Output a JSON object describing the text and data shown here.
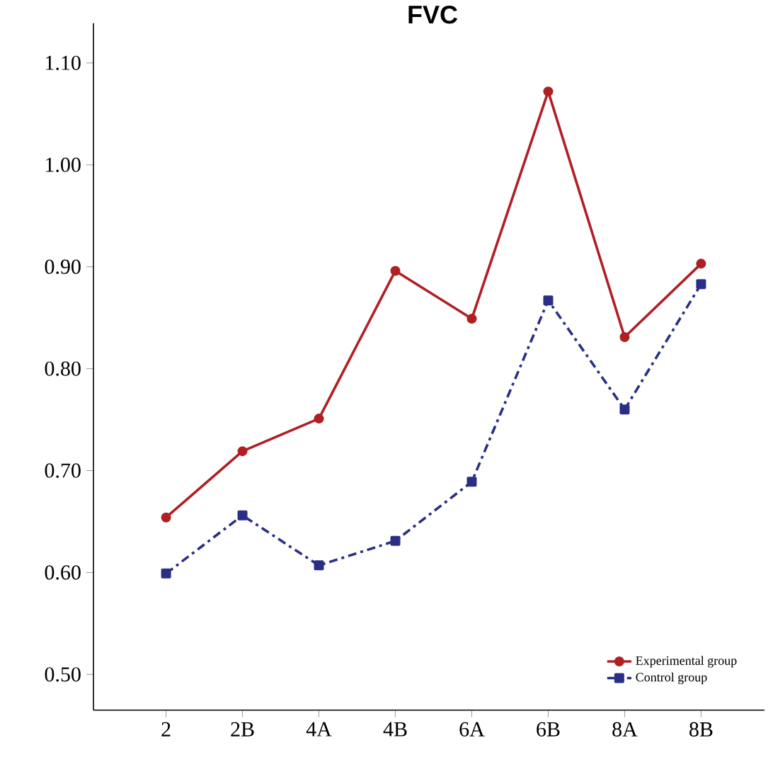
{
  "chart_data": {
    "type": "line",
    "title": "FVC",
    "categories": [
      "2",
      "2B",
      "4A",
      "4B",
      "6A",
      "6B",
      "8A",
      "8B"
    ],
    "series": [
      {
        "name": "Experimental group",
        "color": "#b01f24",
        "marker": "circle",
        "line_style": "solid",
        "values": [
          0.654,
          0.719,
          0.751,
          0.896,
          0.849,
          1.072,
          0.831,
          0.903
        ]
      },
      {
        "name": "Control group",
        "color": "#2a2f86",
        "marker": "square",
        "line_style": "dashed",
        "values": [
          0.599,
          0.656,
          0.607,
          0.631,
          0.689,
          0.867,
          0.76,
          0.883
        ]
      }
    ],
    "ylim": [
      0.465,
      1.139
    ],
    "yticks": [
      {
        "value": 0.5,
        "label": "0.50"
      },
      {
        "value": 0.6,
        "label": "0.60"
      },
      {
        "value": 0.7,
        "label": "0.70"
      },
      {
        "value": 0.8,
        "label": "0.80"
      },
      {
        "value": 0.9,
        "label": "0.90"
      },
      {
        "value": 1.0,
        "label": "1.00"
      },
      {
        "value": 1.1,
        "label": "1.10"
      }
    ],
    "grid": false,
    "legend": "bottom right"
  }
}
